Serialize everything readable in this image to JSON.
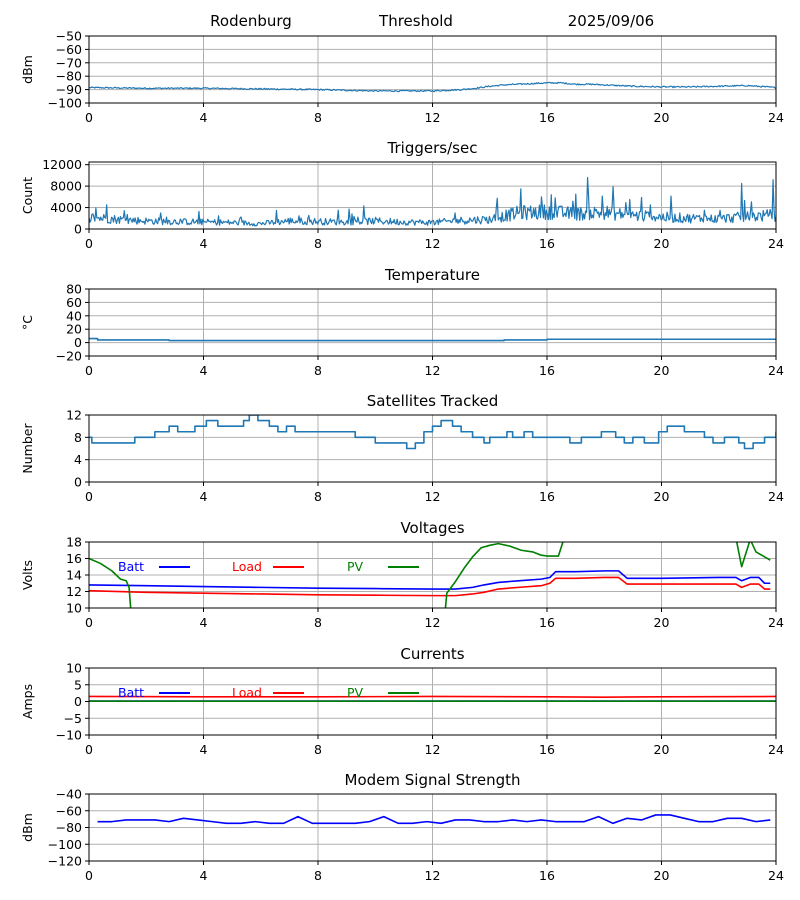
{
  "header": {
    "site": "Rodenburg",
    "mode": "Threshold",
    "date": "2025/09/06"
  },
  "chart_data": [
    {
      "id": "threshold",
      "type": "line",
      "title": "",
      "ylabel": "dBm",
      "xlim": [
        0,
        24
      ],
      "ylim": [
        -100,
        -50
      ],
      "xticks": [
        0,
        4,
        8,
        12,
        16,
        20,
        24
      ],
      "yticks": [
        -100,
        -90,
        -80,
        -70,
        -60,
        -50
      ],
      "ytick_labels": [
        "−100",
        "−90",
        "−80",
        "−70",
        "−60",
        "−50"
      ],
      "grid": true,
      "noise": 0.5,
      "series": [
        {
          "color": "#1f77b4",
          "x": [
            0,
            2,
            4,
            6,
            8,
            9,
            10,
            11,
            12,
            13,
            13.5,
            14,
            14.5,
            15,
            15.5,
            16,
            16.5,
            17,
            17.5,
            18,
            18.5,
            19,
            20,
            21,
            22,
            23,
            24
          ],
          "y": [
            -88.5,
            -89,
            -89,
            -89.5,
            -90,
            -90.5,
            -91,
            -91,
            -91,
            -90,
            -89,
            -87.5,
            -86.5,
            -86,
            -85.5,
            -85,
            -85,
            -86,
            -86,
            -86.5,
            -87,
            -87.5,
            -88,
            -88,
            -87.5,
            -87,
            -88.5
          ]
        }
      ]
    },
    {
      "id": "triggers",
      "type": "line",
      "title": "Triggers/sec",
      "ylabel": "Count",
      "xlim": [
        0,
        24
      ],
      "ylim": [
        0,
        12500
      ],
      "xticks": [
        0,
        4,
        8,
        12,
        16,
        20,
        24
      ],
      "yticks": [
        0,
        4000,
        8000,
        12000
      ],
      "ytick_labels": [
        "0",
        "4000",
        "8000",
        "12000"
      ],
      "grid": true,
      "noise": 1600,
      "series": [
        {
          "color": "#1f77b4",
          "x": [
            0,
            1,
            2,
            3,
            4,
            5,
            6,
            7,
            8,
            9,
            10,
            11,
            12,
            13,
            14,
            15,
            16,
            17,
            18,
            19,
            20,
            21,
            22,
            23,
            24
          ],
          "y": [
            2200,
            1800,
            1500,
            1400,
            1300,
            1200,
            1000,
            1500,
            1400,
            1300,
            1500,
            1300,
            1200,
            1600,
            1800,
            3000,
            3200,
            2800,
            3100,
            2500,
            2200,
            2000,
            1900,
            2300,
            2600
          ],
          "spikes": [
            [
              0.6,
              4500
            ],
            [
              2.5,
              3000
            ],
            [
              8.7,
              3500
            ],
            [
              12.8,
              3000
            ],
            [
              15.1,
              7500
            ],
            [
              15.8,
              6000
            ],
            [
              16.3,
              5800
            ],
            [
              17.0,
              6500
            ],
            [
              18.3,
              7900
            ],
            [
              18.9,
              5500
            ],
            [
              19.6,
              4500
            ],
            [
              21.5,
              3500
            ],
            [
              22.8,
              8500
            ],
            [
              23.9,
              9200
            ]
          ]
        }
      ]
    },
    {
      "id": "temperature",
      "type": "line",
      "title": "Temperature",
      "ylabel": "°C",
      "xlim": [
        0,
        24
      ],
      "ylim": [
        -20,
        80
      ],
      "xticks": [
        0,
        4,
        8,
        12,
        16,
        20,
        24
      ],
      "yticks": [
        -20,
        0,
        20,
        40,
        60,
        80
      ],
      "ytick_labels": [
        "−20",
        "0",
        "20",
        "40",
        "60",
        "80"
      ],
      "grid": true,
      "step": true,
      "series": [
        {
          "color": "#1f77b4",
          "x": [
            0,
            0.3,
            2.8,
            14.5,
            16,
            24
          ],
          "y": [
            6,
            4,
            3,
            4,
            5,
            5
          ]
        }
      ]
    },
    {
      "id": "satellites",
      "type": "line",
      "title": "Satellites Tracked",
      "ylabel": "Number",
      "xlim": [
        0,
        24
      ],
      "ylim": [
        0,
        12
      ],
      "xticks": [
        0,
        4,
        8,
        12,
        16,
        20,
        24
      ],
      "yticks": [
        0,
        4,
        8,
        12
      ],
      "ytick_labels": [
        "0",
        "4",
        "8",
        "12"
      ],
      "grid": true,
      "step": true,
      "series": [
        {
          "color": "#1f77b4",
          "x": [
            0,
            0.1,
            1.6,
            2.3,
            2.8,
            3.1,
            3.7,
            4.1,
            4.5,
            5.4,
            5.6,
            5.9,
            6.3,
            6.6,
            6.9,
            7.2,
            8.1,
            9.3,
            9.5,
            10.0,
            10.8,
            11.1,
            11.4,
            11.7,
            12.0,
            12.3,
            12.7,
            13.0,
            13.4,
            13.8,
            14.0,
            14.6,
            14.8,
            15.2,
            15.5,
            16.0,
            16.8,
            17.2,
            17.9,
            18.4,
            18.7,
            19.0,
            19.4,
            19.9,
            20.2,
            20.8,
            21.5,
            21.8,
            22.2,
            22.7,
            22.9,
            23.2,
            23.6,
            24
          ],
          "y": [
            8,
            7,
            8,
            9,
            10,
            9,
            10,
            11,
            10,
            11,
            12,
            11,
            10,
            9,
            10,
            9,
            9,
            8,
            8,
            7,
            7,
            6,
            7,
            9,
            10,
            11,
            10,
            9,
            8,
            7,
            8,
            9,
            8,
            9,
            8,
            8,
            7,
            8,
            9,
            8,
            7,
            8,
            7,
            9,
            10,
            9,
            8,
            7,
            8,
            7,
            6,
            7,
            8,
            9
          ]
        }
      ]
    },
    {
      "id": "voltages",
      "type": "line",
      "title": "Voltages",
      "ylabel": "Volts",
      "xlim": [
        0,
        24
      ],
      "ylim": [
        10,
        18
      ],
      "xticks": [
        0,
        4,
        8,
        12,
        16,
        20,
        24
      ],
      "yticks": [
        10,
        12,
        14,
        16,
        18
      ],
      "ytick_labels": [
        "10",
        "12",
        "14",
        "16",
        "18"
      ],
      "grid": true,
      "legend": true,
      "series": [
        {
          "name": "Batt",
          "color": "#0000ff",
          "x": [
            0,
            2,
            4,
            6,
            8,
            10,
            12,
            12.8,
            13.4,
            13.8,
            14.3,
            15,
            15.8,
            16.1,
            16.3,
            17,
            18,
            18.5,
            18.8,
            20,
            22,
            22.6,
            22.8,
            23.1,
            23.4,
            23.6,
            23.8
          ],
          "y": [
            12.8,
            12.7,
            12.6,
            12.5,
            12.4,
            12.35,
            12.3,
            12.3,
            12.5,
            12.8,
            13.1,
            13.3,
            13.5,
            13.7,
            14.4,
            14.4,
            14.5,
            14.5,
            13.6,
            13.6,
            13.7,
            13.7,
            13.3,
            13.7,
            13.7,
            13.0,
            13.0
          ]
        },
        {
          "name": "Load",
          "color": "#ff0000",
          "x": [
            0,
            2,
            4,
            6,
            8,
            10,
            12,
            12.8,
            13.4,
            13.8,
            14.3,
            15,
            15.8,
            16.1,
            16.3,
            17,
            18,
            18.5,
            18.8,
            20,
            22,
            22.6,
            22.8,
            23.1,
            23.4,
            23.6,
            23.8
          ],
          "y": [
            12.1,
            11.9,
            11.8,
            11.7,
            11.6,
            11.55,
            11.5,
            11.5,
            11.7,
            11.9,
            12.3,
            12.5,
            12.7,
            13.0,
            13.6,
            13.6,
            13.7,
            13.7,
            12.9,
            12.9,
            12.9,
            12.9,
            12.5,
            12.9,
            12.9,
            12.3,
            12.3
          ]
        },
        {
          "name": "PV",
          "color": "#008000",
          "x": [
            0,
            0.4,
            0.8,
            1.1,
            1.3,
            1.4,
            1.5,
            12.4,
            12.5,
            12.8,
            13.1,
            13.4,
            13.7,
            14.0,
            14.3,
            14.7,
            15.1,
            15.5,
            15.8,
            16.0,
            16.4,
            16.6,
            22.6,
            22.8,
            23.1,
            23.3,
            23.6,
            23.8
          ],
          "y": [
            16.0,
            15.4,
            14.5,
            13.5,
            13.3,
            12.5,
            8,
            8,
            11.8,
            13.2,
            14.8,
            16.2,
            17.3,
            17.6,
            17.8,
            17.5,
            17.0,
            16.8,
            16.4,
            16.3,
            16.3,
            18.5,
            18.5,
            15.0,
            18.3,
            16.8,
            16.2,
            15.8
          ]
        }
      ]
    },
    {
      "id": "currents",
      "type": "line",
      "title": "Currents",
      "ylabel": "Amps",
      "xlim": [
        0,
        24
      ],
      "ylim": [
        -10,
        10
      ],
      "xticks": [
        0,
        4,
        8,
        12,
        16,
        20,
        24
      ],
      "yticks": [
        -10,
        -5,
        0,
        5,
        10
      ],
      "ytick_labels": [
        "−10",
        "−5",
        "0",
        "5",
        "10"
      ],
      "grid": true,
      "legend": true,
      "series": [
        {
          "name": "Batt",
          "color": "#0000ff",
          "x": [
            0,
            24
          ],
          "y": [
            0.15,
            0.15
          ]
        },
        {
          "name": "Load",
          "color": "#ff0000",
          "x": [
            0,
            4,
            8,
            12,
            16,
            18,
            20,
            24
          ],
          "y": [
            1.5,
            1.4,
            1.4,
            1.5,
            1.4,
            1.3,
            1.4,
            1.5
          ]
        },
        {
          "name": "PV",
          "color": "#008000",
          "x": [
            0,
            24
          ],
          "y": [
            0.1,
            0.1
          ]
        }
      ]
    },
    {
      "id": "modem",
      "type": "line",
      "title": "Modem Signal Strength",
      "ylabel": "dBm",
      "xlim": [
        0,
        24
      ],
      "ylim": [
        -120,
        -40
      ],
      "xticks": [
        0,
        4,
        8,
        12,
        16,
        20,
        24
      ],
      "yticks": [
        -120,
        -100,
        -80,
        -60,
        -40
      ],
      "ytick_labels": [
        "−120",
        "−100",
        "−80",
        "−60",
        "−40"
      ],
      "grid": true,
      "series": [
        {
          "color": "#0000ff",
          "x": [
            0.3,
            0.8,
            1.3,
            1.8,
            2.3,
            2.8,
            3.3,
            3.8,
            4.3,
            4.8,
            5.3,
            5.8,
            6.3,
            6.8,
            7.3,
            7.8,
            8.3,
            8.8,
            9.3,
            9.8,
            10.3,
            10.8,
            11.3,
            11.8,
            12.3,
            12.8,
            13.3,
            13.8,
            14.3,
            14.8,
            15.3,
            15.8,
            16.3,
            16.8,
            17.3,
            17.8,
            18.3,
            18.8,
            19.3,
            19.8,
            20.3,
            20.8,
            21.3,
            21.8,
            22.3,
            22.8,
            23.3,
            23.8
          ],
          "y": [
            -73,
            -73,
            -71,
            -71,
            -71,
            -73,
            -69,
            -71,
            -73,
            -75,
            -75,
            -73,
            -75,
            -75,
            -67,
            -75,
            -75,
            -75,
            -75,
            -73,
            -67,
            -75,
            -75,
            -73,
            -75,
            -71,
            -71,
            -73,
            -73,
            -71,
            -73,
            -71,
            -73,
            -73,
            -73,
            -67,
            -75,
            -69,
            -71,
            -65,
            -65,
            -69,
            -73,
            -73,
            -69,
            -69,
            -73,
            -71
          ]
        }
      ]
    }
  ]
}
